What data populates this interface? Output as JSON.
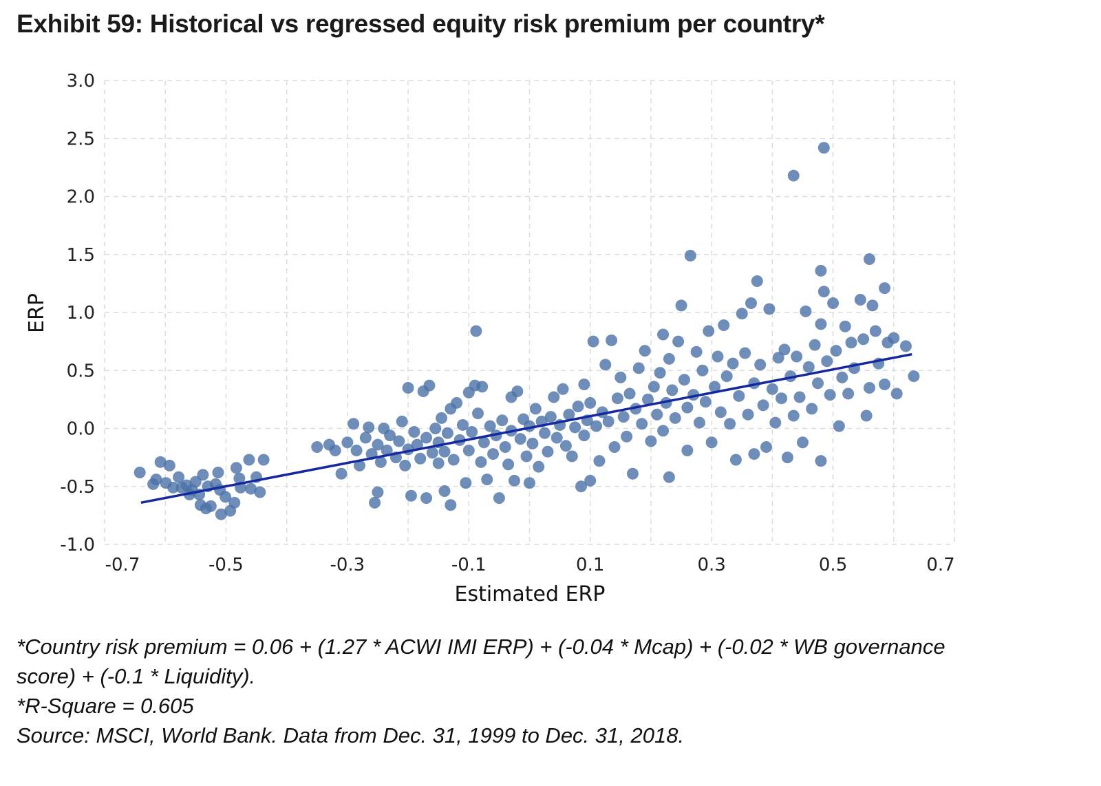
{
  "title": "Exhibit 59: Historical vs regressed equity risk premium per country*",
  "chart_data": {
    "type": "scatter",
    "title": "Exhibit 59: Historical vs regressed equity risk premium per country*",
    "xlabel": "Estimated ERP",
    "ylabel": "ERP",
    "xlim": [
      -0.7,
      0.7
    ],
    "ylim": [
      -1.0,
      3.0
    ],
    "x_ticks": [
      "-0.7",
      "-0.5",
      "-0.3",
      "-0.1",
      "0.1",
      "0.3",
      "0.5",
      "0.7"
    ],
    "x_tick_values": [
      -0.7,
      -0.5,
      -0.3,
      -0.1,
      0.1,
      0.3,
      0.5,
      0.7
    ],
    "y_ticks": [
      "3.0",
      "2.5",
      "2.0",
      "1.5",
      "1.0",
      "0.5",
      "0.0",
      "-0.5",
      "-1.0"
    ],
    "y_tick_values": [
      3.0,
      2.5,
      2.0,
      1.5,
      1.0,
      0.5,
      0.0,
      -0.5,
      -1.0
    ],
    "grid": true,
    "point_color": "#4a72a8",
    "line_color": "#1428a0",
    "regression_line": {
      "x": [
        -0.64,
        0.63
      ],
      "y": [
        -0.64,
        0.64
      ]
    },
    "points": [
      [
        -0.642,
        -0.38
      ],
      [
        -0.615,
        -0.44
      ],
      [
        -0.608,
        -0.29
      ],
      [
        -0.593,
        -0.32
      ],
      [
        -0.599,
        -0.47
      ],
      [
        -0.578,
        -0.42
      ],
      [
        -0.573,
        -0.51
      ],
      [
        -0.565,
        -0.49
      ],
      [
        -0.556,
        -0.53
      ],
      [
        -0.55,
        -0.46
      ],
      [
        -0.544,
        -0.57
      ],
      [
        -0.538,
        -0.4
      ],
      [
        -0.542,
        -0.66
      ],
      [
        -0.533,
        -0.69
      ],
      [
        -0.525,
        -0.67
      ],
      [
        -0.517,
        -0.48
      ],
      [
        -0.513,
        -0.38
      ],
      [
        -0.51,
        -0.53
      ],
      [
        -0.508,
        -0.74
      ],
      [
        -0.501,
        -0.59
      ],
      [
        -0.493,
        -0.71
      ],
      [
        -0.486,
        -0.64
      ],
      [
        -0.483,
        -0.34
      ],
      [
        -0.478,
        -0.43
      ],
      [
        -0.462,
        -0.27
      ],
      [
        -0.45,
        -0.42
      ],
      [
        -0.438,
        -0.27
      ],
      [
        -0.444,
        -0.55
      ],
      [
        -0.459,
        -0.52
      ],
      [
        -0.476,
        -0.51
      ],
      [
        -0.56,
        -0.57
      ],
      [
        -0.587,
        -0.51
      ],
      [
        -0.62,
        -0.48
      ],
      [
        -0.53,
        -0.5
      ],
      [
        -0.35,
        -0.16
      ],
      [
        -0.33,
        -0.14
      ],
      [
        -0.32,
        -0.19
      ],
      [
        -0.31,
        -0.39
      ],
      [
        -0.3,
        -0.12
      ],
      [
        -0.29,
        0.04
      ],
      [
        -0.285,
        -0.19
      ],
      [
        -0.28,
        -0.32
      ],
      [
        -0.27,
        -0.08
      ],
      [
        -0.265,
        0.01
      ],
      [
        -0.26,
        -0.22
      ],
      [
        -0.255,
        -0.64
      ],
      [
        -0.25,
        -0.55
      ],
      [
        -0.25,
        -0.14
      ],
      [
        -0.245,
        -0.29
      ],
      [
        -0.24,
        0.0
      ],
      [
        -0.235,
        -0.19
      ],
      [
        -0.23,
        -0.06
      ],
      [
        -0.22,
        -0.25
      ],
      [
        -0.215,
        -0.11
      ],
      [
        -0.21,
        0.06
      ],
      [
        -0.205,
        -0.32
      ],
      [
        -0.2,
        -0.18
      ],
      [
        -0.2,
        0.35
      ],
      [
        -0.195,
        -0.58
      ],
      [
        -0.19,
        -0.03
      ],
      [
        -0.185,
        -0.14
      ],
      [
        -0.18,
        -0.26
      ],
      [
        -0.175,
        0.32
      ],
      [
        -0.17,
        -0.08
      ],
      [
        -0.17,
        -0.6
      ],
      [
        -0.165,
        0.37
      ],
      [
        -0.16,
        -0.21
      ],
      [
        -0.155,
        0.0
      ],
      [
        -0.15,
        -0.3
      ],
      [
        -0.15,
        -0.12
      ],
      [
        -0.145,
        0.09
      ],
      [
        -0.14,
        -0.54
      ],
      [
        -0.14,
        -0.2
      ],
      [
        -0.135,
        -0.04
      ],
      [
        -0.13,
        0.17
      ],
      [
        -0.13,
        -0.66
      ],
      [
        -0.125,
        -0.27
      ],
      [
        -0.12,
        0.22
      ],
      [
        -0.115,
        -0.1
      ],
      [
        -0.11,
        0.03
      ],
      [
        -0.105,
        -0.47
      ],
      [
        -0.1,
        -0.19
      ],
      [
        -0.1,
        0.31
      ],
      [
        -0.095,
        -0.03
      ],
      [
        -0.09,
        0.37
      ],
      [
        -0.088,
        0.84
      ],
      [
        -0.085,
        0.13
      ],
      [
        -0.08,
        -0.29
      ],
      [
        -0.078,
        0.36
      ],
      [
        -0.075,
        -0.12
      ],
      [
        -0.07,
        -0.44
      ],
      [
        -0.065,
        0.02
      ],
      [
        -0.06,
        -0.22
      ],
      [
        -0.055,
        -0.06
      ],
      [
        -0.05,
        -0.6
      ],
      [
        -0.045,
        0.07
      ],
      [
        -0.04,
        -0.16
      ],
      [
        -0.035,
        -0.31
      ],
      [
        -0.03,
        0.27
      ],
      [
        -0.03,
        -0.02
      ],
      [
        -0.025,
        -0.45
      ],
      [
        -0.02,
        0.32
      ],
      [
        -0.015,
        -0.09
      ],
      [
        -0.01,
        0.08
      ],
      [
        -0.005,
        -0.24
      ],
      [
        0.0,
        -0.47
      ],
      [
        0.0,
        0.02
      ],
      [
        0.005,
        -0.13
      ],
      [
        0.01,
        0.17
      ],
      [
        0.015,
        -0.33
      ],
      [
        0.02,
        0.06
      ],
      [
        0.025,
        -0.04
      ],
      [
        0.03,
        -0.2
      ],
      [
        0.035,
        0.1
      ],
      [
        0.04,
        0.27
      ],
      [
        0.045,
        -0.08
      ],
      [
        0.05,
        0.03
      ],
      [
        0.055,
        0.34
      ],
      [
        0.06,
        -0.15
      ],
      [
        0.065,
        0.12
      ],
      [
        0.07,
        -0.24
      ],
      [
        0.075,
        0.01
      ],
      [
        0.08,
        0.19
      ],
      [
        0.085,
        -0.5
      ],
      [
        0.09,
        0.38
      ],
      [
        0.09,
        -0.06
      ],
      [
        0.095,
        0.07
      ],
      [
        0.1,
        -0.45
      ],
      [
        0.1,
        0.22
      ],
      [
        0.105,
        0.75
      ],
      [
        0.11,
        0.02
      ],
      [
        0.115,
        -0.28
      ],
      [
        0.12,
        0.14
      ],
      [
        0.125,
        0.55
      ],
      [
        0.13,
        0.06
      ],
      [
        0.135,
        0.76
      ],
      [
        0.14,
        -0.16
      ],
      [
        0.145,
        0.26
      ],
      [
        0.15,
        0.44
      ],
      [
        0.155,
        0.1
      ],
      [
        0.16,
        -0.07
      ],
      [
        0.165,
        0.3
      ],
      [
        0.17,
        -0.39
      ],
      [
        0.175,
        0.17
      ],
      [
        0.18,
        0.52
      ],
      [
        0.185,
        0.04
      ],
      [
        0.19,
        0.67
      ],
      [
        0.195,
        0.25
      ],
      [
        0.2,
        -0.11
      ],
      [
        0.205,
        0.36
      ],
      [
        0.21,
        0.12
      ],
      [
        0.215,
        0.48
      ],
      [
        0.22,
        0.81
      ],
      [
        0.22,
        -0.02
      ],
      [
        0.225,
        0.22
      ],
      [
        0.23,
        0.6
      ],
      [
        0.23,
        -0.42
      ],
      [
        0.235,
        0.33
      ],
      [
        0.24,
        0.09
      ],
      [
        0.245,
        0.75
      ],
      [
        0.25,
        1.06
      ],
      [
        0.255,
        0.42
      ],
      [
        0.26,
        0.18
      ],
      [
        0.26,
        -0.19
      ],
      [
        0.265,
        1.49
      ],
      [
        0.27,
        0.29
      ],
      [
        0.275,
        0.66
      ],
      [
        0.28,
        0.05
      ],
      [
        0.285,
        0.5
      ],
      [
        0.29,
        0.23
      ],
      [
        0.295,
        0.84
      ],
      [
        0.3,
        -0.12
      ],
      [
        0.305,
        0.36
      ],
      [
        0.31,
        0.62
      ],
      [
        0.315,
        0.14
      ],
      [
        0.32,
        0.89
      ],
      [
        0.325,
        0.45
      ],
      [
        0.33,
        0.04
      ],
      [
        0.335,
        0.56
      ],
      [
        0.34,
        -0.27
      ],
      [
        0.345,
        0.28
      ],
      [
        0.35,
        0.99
      ],
      [
        0.355,
        0.65
      ],
      [
        0.36,
        0.12
      ],
      [
        0.365,
        1.08
      ],
      [
        0.37,
        0.39
      ],
      [
        0.37,
        -0.22
      ],
      [
        0.375,
        1.27
      ],
      [
        0.38,
        0.55
      ],
      [
        0.385,
        0.2
      ],
      [
        0.39,
        -0.16
      ],
      [
        0.395,
        1.03
      ],
      [
        0.4,
        0.34
      ],
      [
        0.405,
        0.05
      ],
      [
        0.41,
        0.61
      ],
      [
        0.415,
        0.26
      ],
      [
        0.42,
        0.68
      ],
      [
        0.425,
        -0.25
      ],
      [
        0.43,
        0.45
      ],
      [
        0.435,
        0.11
      ],
      [
        0.435,
        2.18
      ],
      [
        0.44,
        0.62
      ],
      [
        0.445,
        0.27
      ],
      [
        0.45,
        -0.12
      ],
      [
        0.455,
        1.01
      ],
      [
        0.46,
        0.53
      ],
      [
        0.465,
        0.17
      ],
      [
        0.47,
        0.72
      ],
      [
        0.475,
        0.39
      ],
      [
        0.48,
        1.36
      ],
      [
        0.48,
        0.9
      ],
      [
        0.48,
        -0.28
      ],
      [
        0.485,
        2.42
      ],
      [
        0.485,
        1.18
      ],
      [
        0.49,
        0.58
      ],
      [
        0.495,
        0.29
      ],
      [
        0.5,
        1.08
      ],
      [
        0.505,
        0.67
      ],
      [
        0.51,
        0.02
      ],
      [
        0.515,
        0.44
      ],
      [
        0.52,
        0.88
      ],
      [
        0.525,
        0.3
      ],
      [
        0.53,
        0.74
      ],
      [
        0.535,
        0.52
      ],
      [
        0.545,
        1.11
      ],
      [
        0.55,
        0.77
      ],
      [
        0.555,
        0.11
      ],
      [
        0.56,
        0.35
      ],
      [
        0.56,
        1.46
      ],
      [
        0.565,
        1.06
      ],
      [
        0.57,
        0.84
      ],
      [
        0.575,
        0.56
      ],
      [
        0.585,
        1.21
      ],
      [
        0.585,
        0.38
      ],
      [
        0.59,
        0.74
      ],
      [
        0.6,
        0.78
      ],
      [
        0.605,
        0.3
      ],
      [
        0.62,
        0.71
      ],
      [
        0.633,
        0.45
      ]
    ]
  },
  "footnotes": [
    "*Country risk premium = 0.06 + (1.27 * ACWI IMI ERP) + (-0.04 * Mcap) + (-0.02 * WB governance",
    "score) + (-0.1 * Liquidity).",
    "*R-Square = 0.605",
    "Source: MSCI, World Bank. Data from Dec. 31, 1999 to Dec. 31, 2018."
  ]
}
